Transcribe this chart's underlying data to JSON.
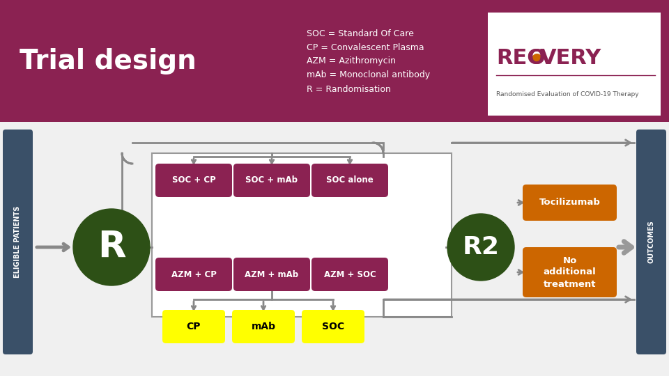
{
  "title": "Trial design",
  "header_bg": "#8B2252",
  "header_text_color": "#FFFFFF",
  "body_bg": "#F0F0F0",
  "legend_lines": [
    "SOC = Standard Of Care",
    "CP = Convalescent Plasma",
    "AZM = Azithromycin",
    "mAb = Monoclonal antibody",
    "R = Randomisation"
  ],
  "soc_boxes": [
    "SOC + CP",
    "SOC + mAb",
    "SOC alone"
  ],
  "azm_boxes": [
    "AZM + CP",
    "AZM + mAb",
    "AZM + SOC"
  ],
  "bottom_boxes": [
    "CP",
    "mAb",
    "SOC"
  ],
  "r2_boxes": [
    "Tocilizumab",
    "No\nadditional\ntreatment"
  ],
  "box_color_maroon": "#8B2252",
  "box_color_orange": "#CC6600",
  "box_color_yellow": "#FFFF00",
  "r_circle_color": "#2D5016",
  "side_bar_color": "#3A5068",
  "side_bar_text": [
    "ELIGIBLE PATIENTS",
    "OUTCOMES"
  ],
  "arrow_color": "#888888",
  "recovery_text_color": "#8B2252"
}
